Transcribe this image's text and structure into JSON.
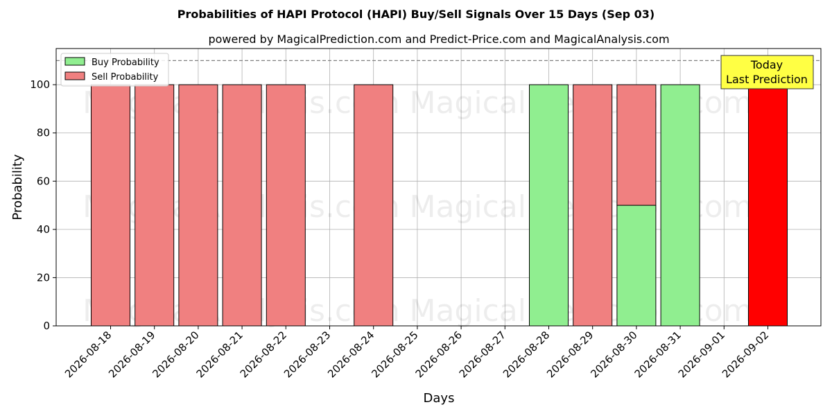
{
  "chart_data": {
    "type": "bar",
    "title": "Probabilities of HAPI Protocol (HAPI) Buy/Sell Signals Over 15 Days (Sep 03)",
    "subtitle": "powered by MagicalPrediction.com and Predict-Price.com and MagicalAnalysis.com",
    "xlabel": "Days",
    "ylabel": "Probability",
    "ylim": [
      0,
      115
    ],
    "yticks": [
      0,
      20,
      40,
      60,
      80,
      100
    ],
    "reference_line": 110,
    "grid": true,
    "stacked": true,
    "legend_position": "top-left",
    "categories": [
      "2026-08-18",
      "2026-08-19",
      "2026-08-20",
      "2026-08-21",
      "2026-08-22",
      "2026-08-23",
      "2026-08-24",
      "2026-08-25",
      "2026-08-26",
      "2026-08-27",
      "2026-08-28",
      "2026-08-29",
      "2026-08-30",
      "2026-08-31",
      "2026-09-01",
      "2026-09-02"
    ],
    "series": [
      {
        "name": "Buy Probability",
        "color": "#90ee90",
        "values": [
          0,
          0,
          0,
          0,
          0,
          0,
          0,
          0,
          0,
          0,
          100,
          0,
          50,
          100,
          0,
          0
        ]
      },
      {
        "name": "Sell Probability",
        "color": "#f08080",
        "values": [
          100,
          100,
          100,
          100,
          100,
          0,
          100,
          0,
          0,
          0,
          0,
          100,
          50,
          0,
          0,
          100
        ]
      }
    ],
    "highlight": {
      "category": "2026-09-02",
      "color": "#ff0000"
    },
    "annotation": {
      "line1": "Today",
      "line2": "Last Prediction",
      "color": "#ffff44"
    },
    "watermarks": [
      "MagicalAnalysis.com",
      "MagicalPrediction.com"
    ]
  }
}
